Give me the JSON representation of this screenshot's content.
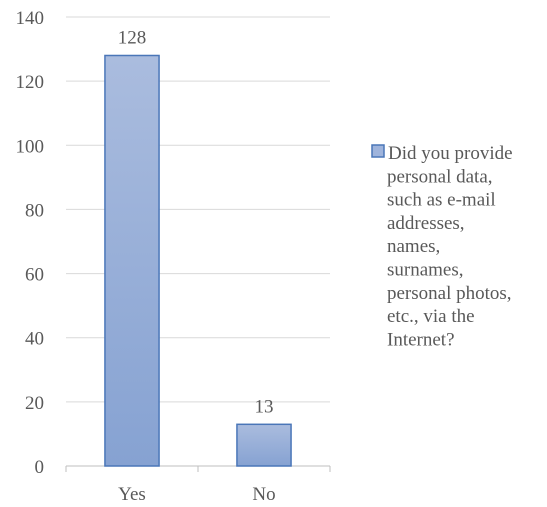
{
  "chart_data": {
    "type": "bar",
    "categories": [
      "Yes",
      "No"
    ],
    "series": [
      {
        "name": "Did you provide personal data, such as e-mail addresses, names, surnames, personal photos, etc., via the Internet?",
        "values": [
          128,
          13
        ]
      }
    ],
    "data_labels": [
      "128",
      "13"
    ],
    "ylim": [
      0,
      140
    ],
    "yticks": [
      0,
      20,
      40,
      60,
      80,
      100,
      120,
      140
    ],
    "grid": true,
    "legend_position": "right",
    "bar_color": "#9fb4dc",
    "bar_edge_color": "#4a76b8",
    "legend_lines": [
      "Did you provide",
      "personal data,",
      "such as e-mail",
      "addresses,",
      "names,",
      "surnames,",
      "personal photos,",
      "etc., via the",
      "Internet?"
    ]
  }
}
